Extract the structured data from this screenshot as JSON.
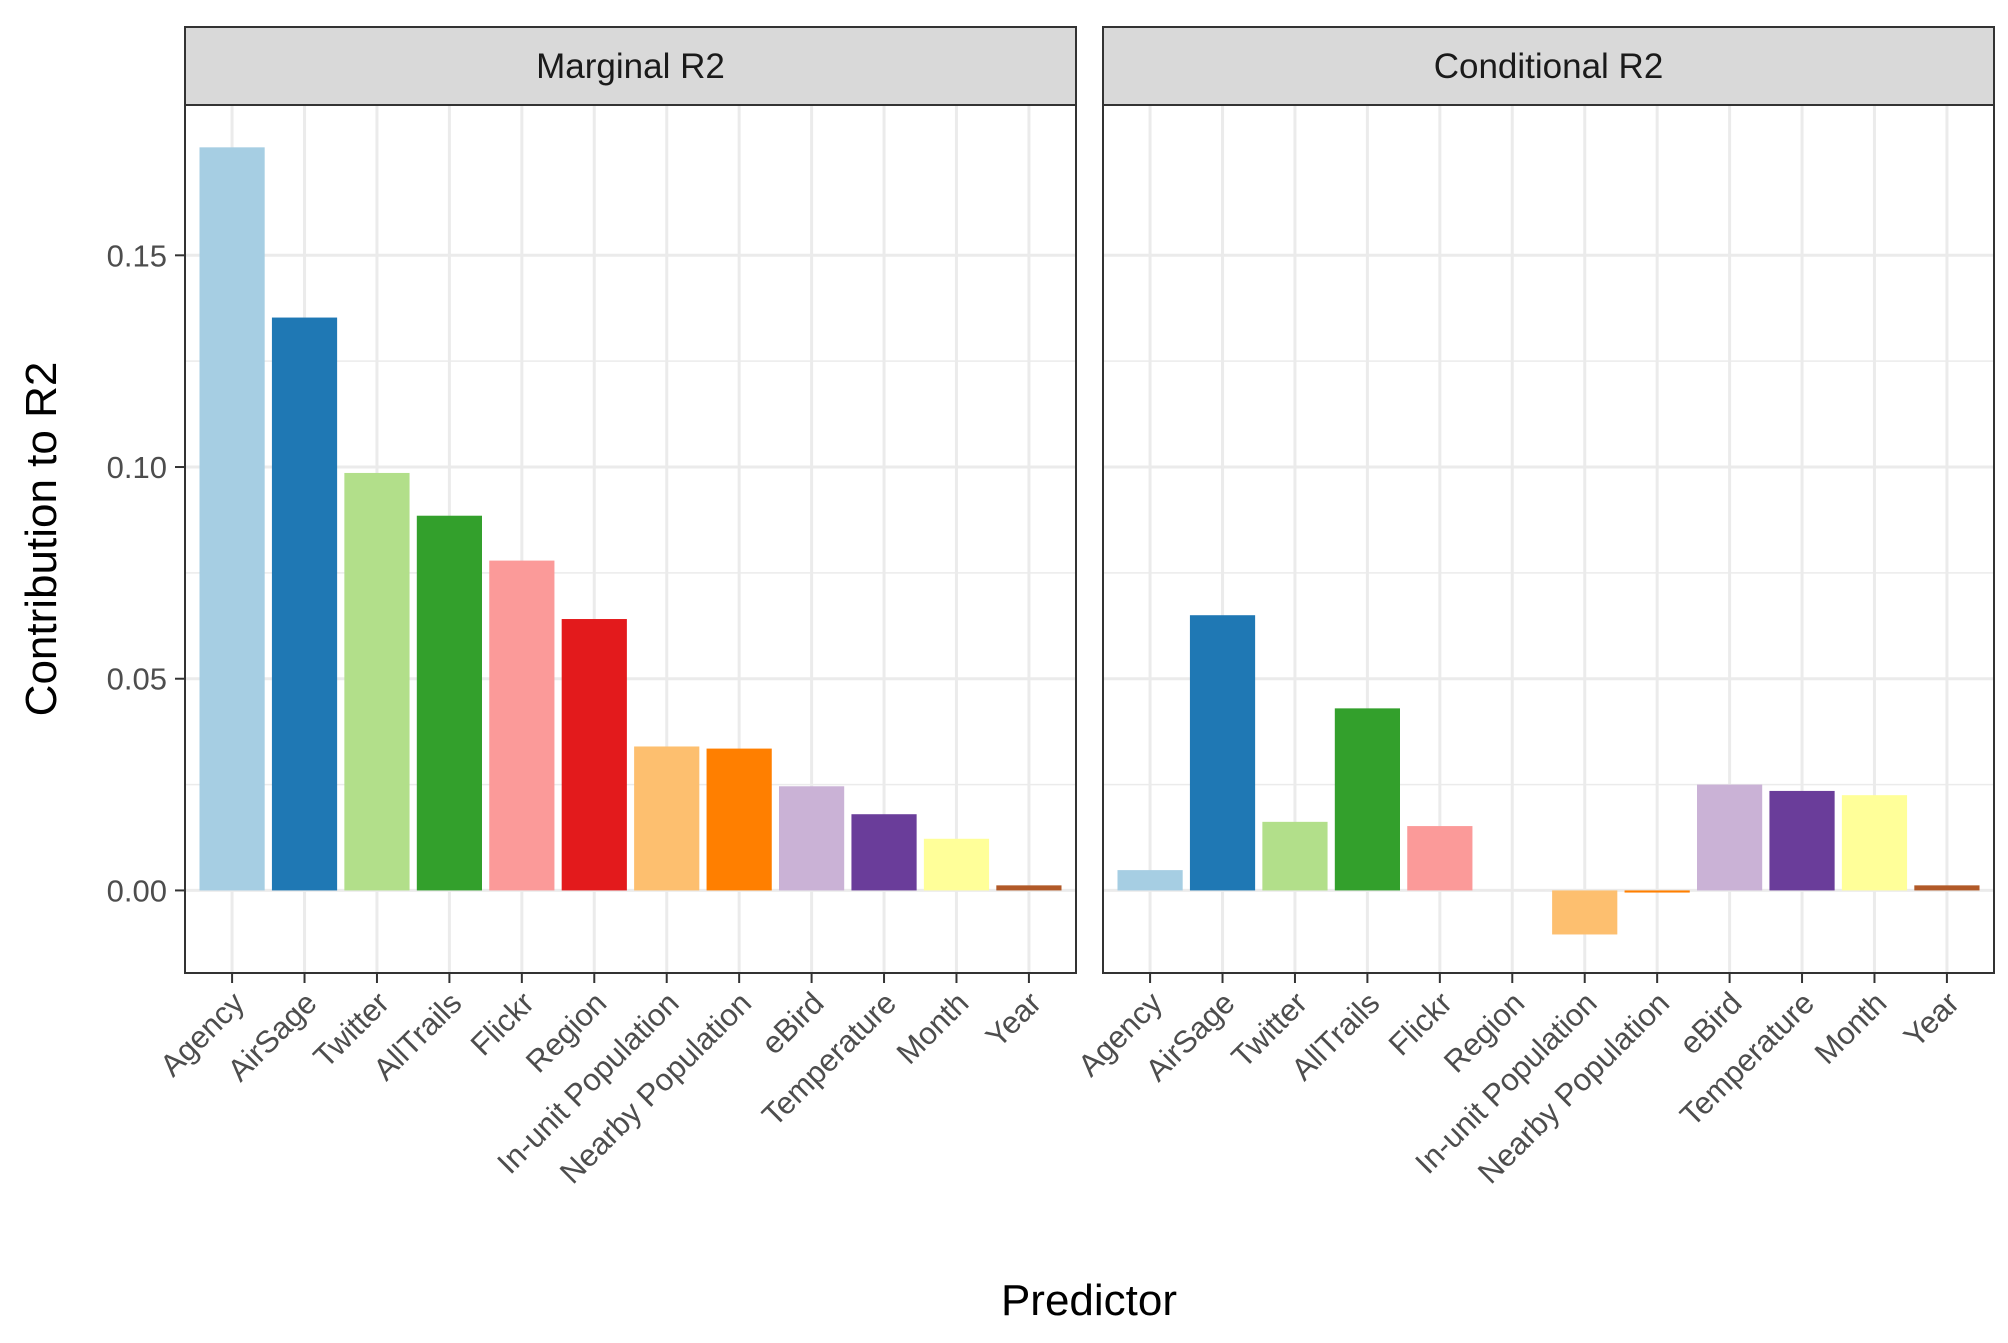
{
  "chart_data": {
    "type": "bar",
    "xlabel": "Predictor",
    "ylabel": "Contribution to R2",
    "ylim": [
      -0.0195,
      0.1855
    ],
    "yticks": [
      "0.00",
      "0.05",
      "0.10",
      "0.15"
    ],
    "ytick_values": [
      0,
      0.05,
      0.1,
      0.15
    ],
    "grid": true,
    "legend": "none",
    "categories": [
      "Agency",
      "AirSage",
      "Twitter",
      "AllTrails",
      "Flickr",
      "Region",
      "In-unit Population",
      "Nearby Population",
      "eBird",
      "Temperature",
      "Month",
      "Year"
    ],
    "colors": [
      "#a6cee3",
      "#1f78b4",
      "#b2df8a",
      "#33a02c",
      "#fb9a99",
      "#e31a1c",
      "#fdbf6f",
      "#ff7f00",
      "#cab2d6",
      "#6a3d9a",
      "#ffff99",
      "#b15928"
    ],
    "panels": [
      {
        "title": "Marginal R2",
        "values": [
          0.1755,
          0.1353,
          0.0986,
          0.0885,
          0.0779,
          0.0641,
          0.034,
          0.0335,
          0.0246,
          0.018,
          0.0122,
          0.0012
        ]
      },
      {
        "title": "Conditional R2",
        "values": [
          0.0048,
          0.065,
          0.0162,
          0.043,
          0.0152,
          0.0,
          -0.0104,
          -0.0005,
          0.025,
          0.0235,
          0.0225,
          0.0012
        ]
      }
    ]
  }
}
